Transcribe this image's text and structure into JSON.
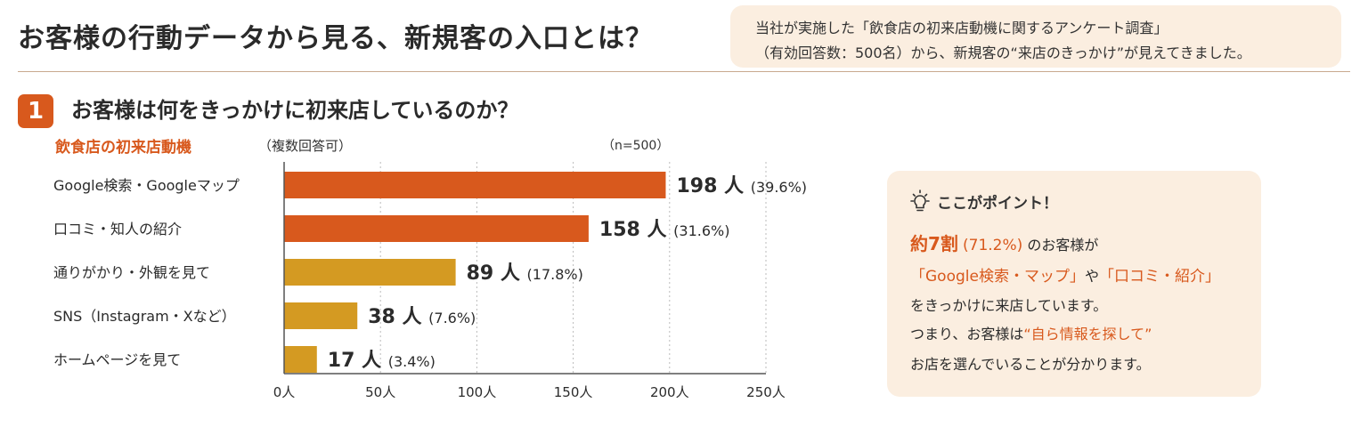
{
  "header": {
    "title": "お客様の行動データから見る、新規客の入口とは？",
    "intro_line1": "当社が実施した「飲食店の初来店動機に関するアンケート調査」",
    "intro_line2": "（有効回答数：500名）から、新規客の“来店のきっかけ”が見えてきました。"
  },
  "section": {
    "number": "1",
    "heading": "お客様は何をきっかけに初来店しているのか？"
  },
  "chart_data": {
    "type": "bar",
    "orientation": "horizontal",
    "title": "飲食店の初来店動機",
    "subtitle": "（複数回答可）",
    "sample_note": "（n=500）",
    "categories": [
      "Google検索・Googleマップ",
      "口コミ・知人の紹介",
      "通りがかり・外観を見て",
      "SNS（Instagram・Xなど）",
      "ホームページを見て"
    ],
    "values": [
      198,
      158,
      89,
      38,
      17
    ],
    "percent_labels": [
      "(39.6%)",
      "(31.6%)",
      "(17.8%)",
      "(7.6%)",
      "(3.4%)"
    ],
    "unit": "人",
    "xlim": [
      0,
      250
    ],
    "ticks": [
      0,
      50,
      100,
      150,
      200,
      250
    ],
    "tick_labels": [
      "0人",
      "50人",
      "100人",
      "150人",
      "200人",
      "250人"
    ],
    "grid": true,
    "colors": [
      "#d8591d",
      "#d8591d",
      "#d49a22",
      "#d49a22",
      "#d49a22"
    ]
  },
  "point": {
    "icon": "lightbulb-icon",
    "heading": "ここがポイント！",
    "l1_a": "約7割",
    "l1_b": "(71.2%)",
    "l1_c": "のお客様が",
    "l2_a": "「Google検索・マップ」",
    "l2_b": "や",
    "l2_c": "「口コミ・紹介」",
    "l3": "をきっかけに来店しています。",
    "l4_a": "つまり、お客様は",
    "l4_b": "“自ら情報を探して”",
    "l5": "お店を選んでいることが分かります。"
  }
}
